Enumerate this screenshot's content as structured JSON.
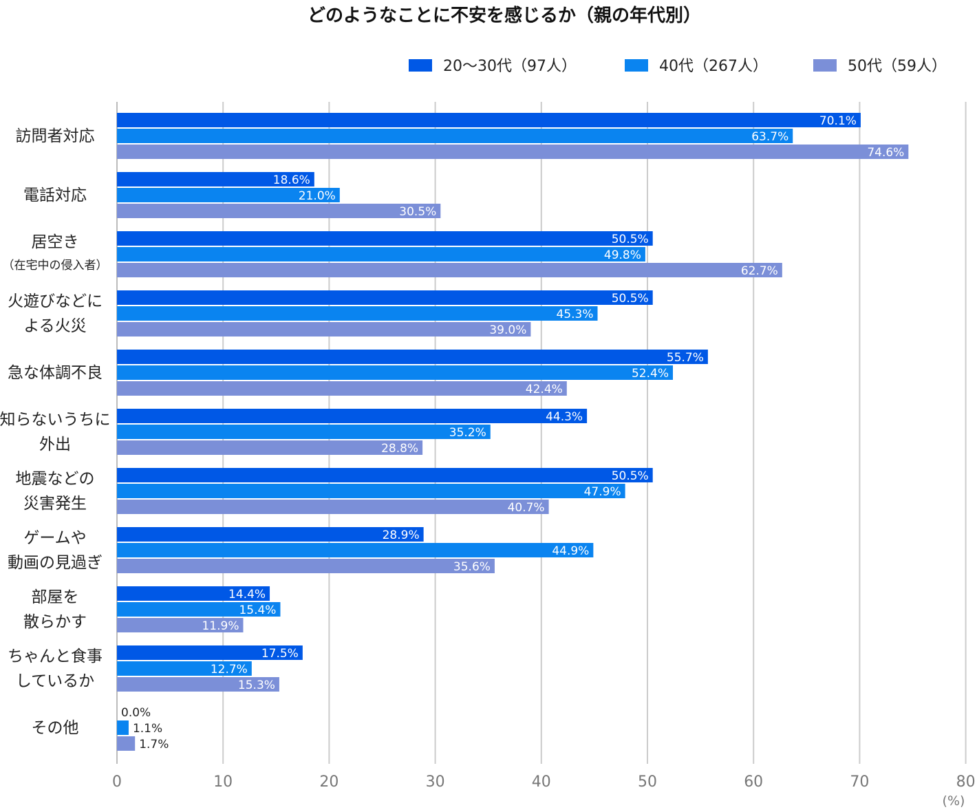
{
  "chart_data": {
    "type": "bar",
    "orientation": "horizontal",
    "title": "どのようなことに不安を感じるか（親の年代別）",
    "unit": "(%)",
    "xlim": [
      0,
      80
    ],
    "ticks": [
      0,
      10,
      20,
      30,
      40,
      50,
      60,
      70,
      80
    ],
    "grid": true,
    "legend_position": "top-right",
    "colors": [
      "#0058e6",
      "#0a84f0",
      "#7b8fd8"
    ],
    "categories": [
      [
        "訪問者対応"
      ],
      [
        "電話対応"
      ],
      [
        "居空き",
        "（在宅中の侵入者）"
      ],
      [
        "火遊びなどに",
        "よる火災"
      ],
      [
        "急な体調不良"
      ],
      [
        "知らないうちに",
        "外出"
      ],
      [
        "地震などの",
        "災害発生"
      ],
      [
        "ゲームや",
        "動画の見過ぎ"
      ],
      [
        "部屋を",
        "散らかす"
      ],
      [
        "ちゃんと食事",
        "しているか"
      ],
      [
        "その他"
      ]
    ],
    "series": [
      {
        "name": "20〜30代（97人）",
        "values": [
          70.1,
          18.6,
          50.5,
          50.5,
          55.7,
          44.3,
          50.5,
          28.9,
          14.4,
          17.5,
          0.0
        ]
      },
      {
        "name": "40代（267人）",
        "values": [
          63.7,
          21.0,
          49.8,
          45.3,
          52.4,
          35.2,
          47.9,
          44.9,
          15.4,
          12.7,
          1.1
        ]
      },
      {
        "name": "50代（59人）",
        "values": [
          74.6,
          30.5,
          62.7,
          39.0,
          42.4,
          28.8,
          40.7,
          35.6,
          11.9,
          15.3,
          1.7
        ]
      }
    ]
  }
}
